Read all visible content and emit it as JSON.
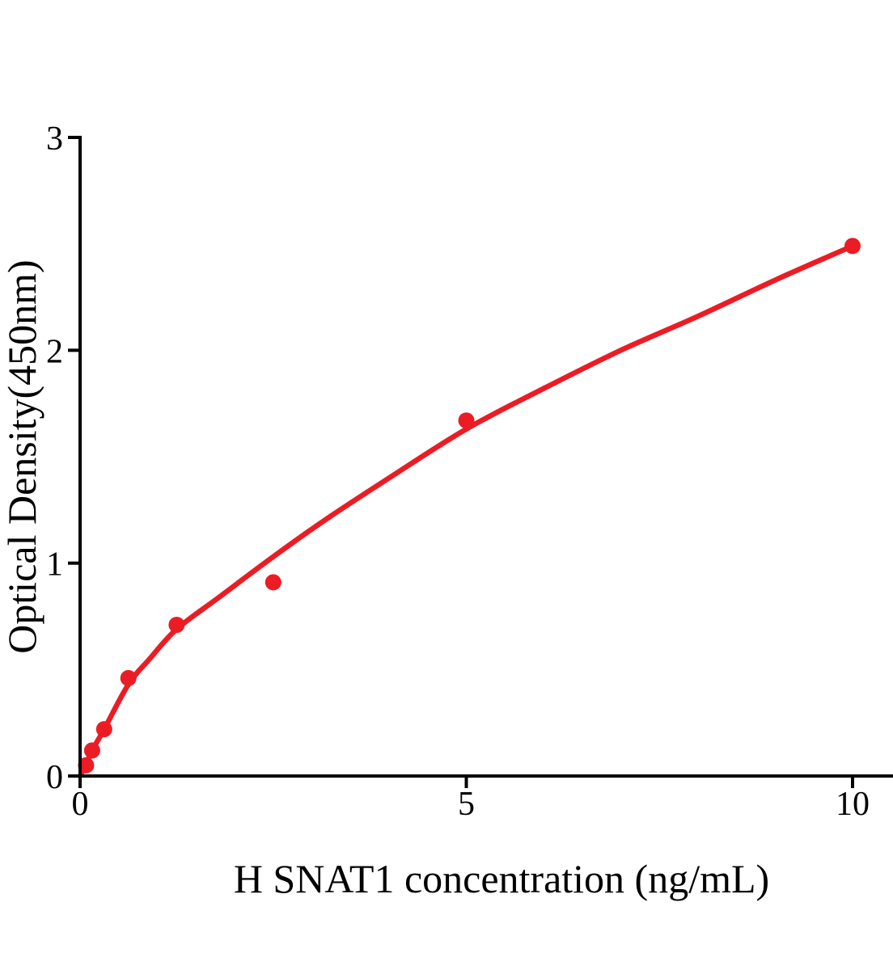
{
  "figure": {
    "background_color": "#ffffff",
    "axis_color": "#000000",
    "accent_color": "#ec1c24"
  },
  "chart_data": {
    "type": "scatter",
    "title": "",
    "xlabel": "H SNAT1 concentration (ng/mL)",
    "ylabel": "Optical Density(450nm)",
    "xlim": [
      0,
      10.55
    ],
    "ylim": [
      0,
      3
    ],
    "x_ticks": [
      0,
      5,
      10
    ],
    "y_ticks": [
      0,
      1,
      2,
      3
    ],
    "grid": false,
    "legend_position": "none",
    "series": [
      {
        "name": "standard-points",
        "type": "scatter",
        "marker": "circle",
        "color": "#ec1c24",
        "x": [
          0.078,
          0.156,
          0.3125,
          0.625,
          1.25,
          2.5,
          5,
          10
        ],
        "y": [
          0.05,
          0.12,
          0.22,
          0.46,
          0.71,
          0.91,
          1.67,
          2.49
        ]
      },
      {
        "name": "fitted-curve",
        "type": "line",
        "color": "#ec1c24",
        "x": [
          0,
          0.078,
          0.156,
          0.3125,
          0.625,
          0.9,
          1.25,
          1.8,
          2.5,
          3.2,
          4,
          5,
          6,
          7,
          8,
          9,
          10
        ],
        "y": [
          0,
          0.055,
          0.12,
          0.22,
          0.43,
          0.55,
          0.69,
          0.84,
          1.03,
          1.21,
          1.4,
          1.63,
          1.82,
          2.0,
          2.16,
          2.33,
          2.49
        ]
      }
    ]
  }
}
